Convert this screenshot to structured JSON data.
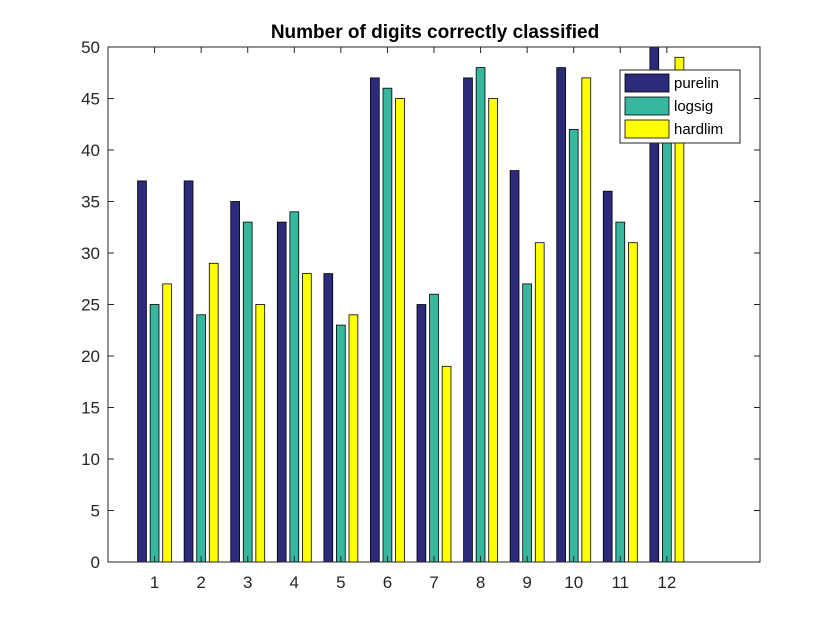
{
  "chart_data": {
    "type": "bar",
    "title": "Number of digits correctly classified",
    "xlabel": "",
    "ylabel": "",
    "categories": [
      "1",
      "2",
      "3",
      "4",
      "5",
      "6",
      "7",
      "8",
      "9",
      "10",
      "11",
      "12"
    ],
    "series": [
      {
        "name": "purelin",
        "color": "#2c2a7a",
        "values": [
          37,
          37,
          35,
          33,
          28,
          47,
          25,
          47,
          38,
          48,
          36,
          50
        ]
      },
      {
        "name": "logsig",
        "color": "#36b79e",
        "values": [
          25,
          24,
          33,
          34,
          23,
          46,
          26,
          48,
          27,
          42,
          33,
          41
        ]
      },
      {
        "name": "hardlim",
        "color": "#ffff00",
        "values": [
          27,
          29,
          25,
          28,
          24,
          45,
          19,
          45,
          31,
          47,
          31,
          49
        ]
      }
    ],
    "xlim": [
      0,
      14
    ],
    "ylim": [
      0,
      50
    ],
    "yticks": [
      "0",
      "5",
      "10",
      "15",
      "20",
      "25",
      "30",
      "35",
      "40",
      "45",
      "50"
    ],
    "grid": false,
    "legend": "top-right"
  }
}
